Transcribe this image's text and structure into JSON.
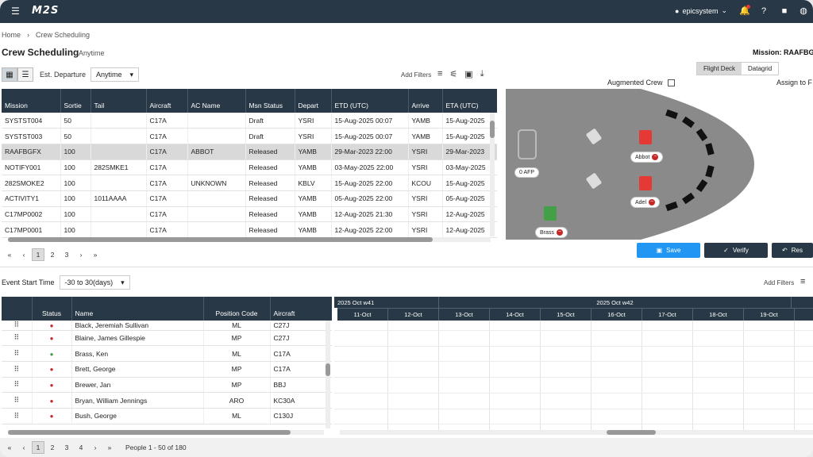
{
  "app": {
    "logo": "M2S",
    "user": "epicsystem"
  },
  "breadcrumb": {
    "home": "Home",
    "sep": "›",
    "current": "Crew Scheduling"
  },
  "page": {
    "title": "Crew Scheduling",
    "subtitle": "Anytime",
    "mission_label": "Mission: RAAFBGF"
  },
  "toolbar": {
    "label": "Est. Departure",
    "select": "Anytime",
    "add_filters": "Add Filters"
  },
  "mission_table": {
    "columns": [
      "Mission",
      "Sortie",
      "Tail",
      "Aircraft",
      "AC Name",
      "Msn Status",
      "Depart",
      "ETD (UTC)",
      "Arrive",
      "ETA (UTC)"
    ],
    "rows": [
      [
        "SYSTST004",
        "50",
        "",
        "C17A",
        "",
        "Draft",
        "YSRI",
        "15-Aug-2025 00:07",
        "YAMB",
        "15-Aug-2025"
      ],
      [
        "SYSTST003",
        "50",
        "",
        "C17A",
        "",
        "Draft",
        "YSRI",
        "15-Aug-2025 00:07",
        "YAMB",
        "15-Aug-2025"
      ],
      [
        "RAAFBGFX",
        "100",
        "",
        "C17A",
        "ABBOT",
        "Released",
        "YAMB",
        "29-Mar-2023 22:00",
        "YSRI",
        "29-Mar-2023"
      ],
      [
        "NOTIFY001",
        "100",
        "282SMKE1",
        "C17A",
        "",
        "Released",
        "YAMB",
        "03-May-2025 22:00",
        "YSRI",
        "03-May-2025"
      ],
      [
        "282SMOKE2",
        "100",
        "",
        "C17A",
        "UNKNOWN",
        "Released",
        "KBLV",
        "15-Aug-2025 22:00",
        "KCOU",
        "15-Aug-2025"
      ],
      [
        "ACTIVITY1",
        "100",
        "1011AAAA",
        "C17A",
        "",
        "Released",
        "YAMB",
        "05-Aug-2025 22:00",
        "YSRI",
        "05-Aug-2025"
      ],
      [
        "C17MP0002",
        "100",
        "",
        "C17A",
        "",
        "Released",
        "YAMB",
        "12-Aug-2025 21:30",
        "YSRI",
        "12-Aug-2025"
      ],
      [
        "C17MP0001",
        "100",
        "",
        "C17A",
        "",
        "Released",
        "YAMB",
        "12-Aug-2025 22:00",
        "YSRI",
        "12-Aug-2025"
      ]
    ],
    "selected_row": 2
  },
  "upper_pager": {
    "pages": [
      "1",
      "2",
      "3"
    ],
    "current": "1"
  },
  "deck_tabs": {
    "flight_deck": "Flight Deck",
    "datagrid": "Datagrid"
  },
  "augmented_crew": "Augmented Crew",
  "assign_to": "Assign to F",
  "deck": {
    "afp": "0 AFP",
    "seat_abbot": "Abbot",
    "seat_adel": "Adel",
    "seat_brass": "Brass"
  },
  "actions": {
    "save": "Save",
    "verify": "Verify",
    "reset": "Res"
  },
  "lower": {
    "label": "Event Start Time",
    "select": "-30 to 30(days)",
    "add_filters": "Add Filters"
  },
  "people_table": {
    "columns": [
      "",
      "Status",
      "Name",
      "Position Code",
      "Aircraft"
    ],
    "rows": [
      {
        "name": "Black, Jeremiah Sullivan",
        "pos": "ML",
        "ac": "C27J",
        "status": "red"
      },
      {
        "name": "Blaine, James Gillespie",
        "pos": "MP",
        "ac": "C27J",
        "status": "red"
      },
      {
        "name": "Brass, Ken",
        "pos": "ML",
        "ac": "C17A",
        "status": "green"
      },
      {
        "name": "Brett, George",
        "pos": "MP",
        "ac": "C17A",
        "status": "red"
      },
      {
        "name": "Brewer, Jan",
        "pos": "MP",
        "ac": "BBJ",
        "status": "red"
      },
      {
        "name": "Bryan, William Jennings",
        "pos": "ARO",
        "ac": "KC30A",
        "status": "red"
      },
      {
        "name": "Bush, George",
        "pos": "ML",
        "ac": "C130J",
        "status": "red"
      }
    ]
  },
  "gantt": {
    "weeks": [
      "2025 Oct w41",
      "2025 Oct w42"
    ],
    "days": [
      "11-Oct",
      "12-Oct",
      "13-Oct",
      "14-Oct",
      "15-Oct",
      "16-Oct",
      "17-Oct",
      "18-Oct",
      "19-Oct"
    ]
  },
  "lower_pager": {
    "pages": [
      "1",
      "2",
      "3",
      "4"
    ],
    "current": "1",
    "info": "People 1 - 50 of 180"
  },
  "colors": {
    "header": "#283846",
    "save": "#2196f3",
    "verify": "#283846"
  }
}
